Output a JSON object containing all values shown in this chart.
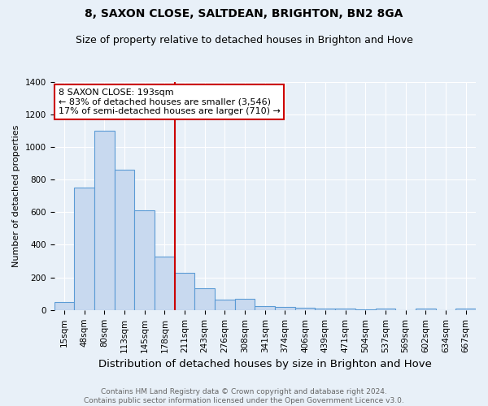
{
  "title": "8, SAXON CLOSE, SALTDEAN, BRIGHTON, BN2 8GA",
  "subtitle": "Size of property relative to detached houses in Brighton and Hove",
  "xlabel": "Distribution of detached houses by size in Brighton and Hove",
  "ylabel": "Number of detached properties",
  "footer_line1": "Contains HM Land Registry data © Crown copyright and database right 2024.",
  "footer_line2": "Contains public sector information licensed under the Open Government Licence v3.0.",
  "categories": [
    "15sqm",
    "48sqm",
    "80sqm",
    "113sqm",
    "145sqm",
    "178sqm",
    "211sqm",
    "243sqm",
    "276sqm",
    "308sqm",
    "341sqm",
    "374sqm",
    "406sqm",
    "439sqm",
    "471sqm",
    "504sqm",
    "537sqm",
    "569sqm",
    "602sqm",
    "634sqm",
    "667sqm"
  ],
  "values": [
    50,
    750,
    1100,
    860,
    610,
    330,
    230,
    135,
    65,
    70,
    25,
    20,
    15,
    10,
    10,
    5,
    10,
    0,
    10,
    0,
    10
  ],
  "bar_color": "#c8d9ef",
  "bar_edge_color": "#5b9bd5",
  "red_line_x": 5.5,
  "red_line_color": "#cc0000",
  "annotation_line1": "8 SAXON CLOSE: 193sqm",
  "annotation_line2": "← 83% of detached houses are smaller (3,546)",
  "annotation_line3": "17% of semi-detached houses are larger (710) →",
  "annotation_box_color": "white",
  "annotation_box_edge_color": "#cc0000",
  "ylim": [
    0,
    1400
  ],
  "yticks": [
    0,
    200,
    400,
    600,
    800,
    1000,
    1200,
    1400
  ],
  "background_color": "#e8f0f8",
  "plot_background_color": "#e8f0f8",
  "grid_color": "white",
  "title_fontsize": 10,
  "subtitle_fontsize": 9,
  "xlabel_fontsize": 9.5,
  "ylabel_fontsize": 8,
  "tick_fontsize": 7.5,
  "footer_fontsize": 6.5
}
